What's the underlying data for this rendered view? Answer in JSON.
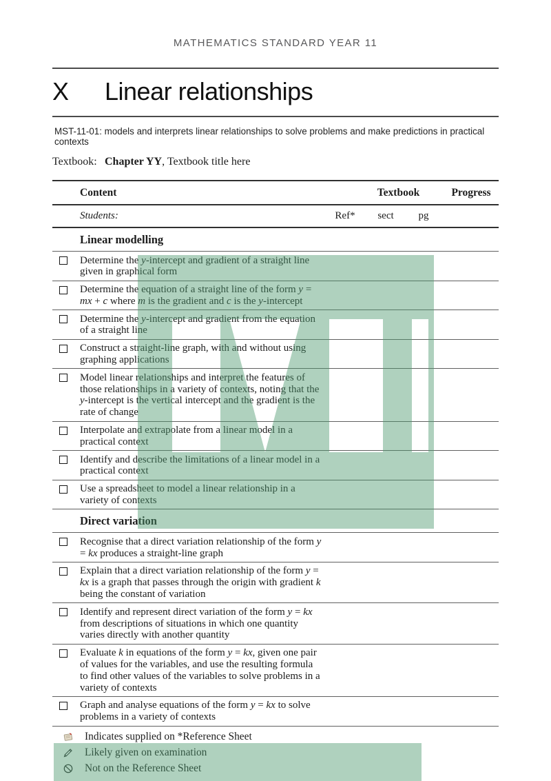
{
  "page_header": "MATHEMATICS STANDARD YEAR 11",
  "chapter": {
    "number": "X",
    "title": "Linear relationships"
  },
  "outcome": "MST-11-01: models and interprets linear relationships to solve problems and make predictions in practical contexts",
  "textbook_line": {
    "label": "Textbook:",
    "chapter": "Chapter YY",
    "rest": ", Textbook title here"
  },
  "table": {
    "headers": {
      "content": "Content",
      "textbook": "Textbook",
      "progress": "Progress"
    },
    "subheader": {
      "students": "Students:",
      "ref": "Ref*",
      "sect": "sect",
      "pg": "pg"
    },
    "sections": [
      {
        "title": "Linear modelling",
        "items": [
          "Determine the *y*-intercept and gradient of a straight line given in graphical form",
          "Determine the equation of a straight line of the form *y* = *mx* + *c* where *m* is the gradient and *c* is the *y*-intercept",
          "Determine the *y*-intercept and gradient from the equation of a straight line",
          "Construct a straight-line graph, with and without using graphing applications",
          "Model linear relationships and interpret the features of those relationships in a variety of contexts, noting that the *y*-intercept is the vertical intercept and the gradient is the rate of change",
          "Interpolate and extrapolate from a linear model in a practical context",
          "Identify and describe the limitations of a linear model in a practical context",
          "Use a spreadsheet to model a linear relationship in a variety of contexts"
        ]
      },
      {
        "title": "Direct variation",
        "items": [
          "Recognise that a direct variation relationship of the form *y* = *kx* produces a straight-line graph",
          "Explain that a direct variation relationship of the form *y* = *kx* is a graph that passes through the origin with gradient *k* being the constant of variation",
          "Identify and represent direct variation of the form *y* = *kx* from descriptions of situations in which one quantity varies directly with another quantity",
          "Evaluate *k* in equations of the form *y* = *kx*, given one pair of values for the variables, and use the resulting formula to find other values of the variables to solve problems in a variety of contexts",
          "Graph and analyse equations of the form *y* = *kx* to solve problems in a variety of contexts"
        ]
      }
    ]
  },
  "legend": [
    {
      "icon": "note-icon",
      "text": "Indicates supplied on *Reference Sheet"
    },
    {
      "icon": "pencil-icon",
      "text": "Likely given on examination"
    },
    {
      "icon": "no-symbol-icon",
      "text": "Not on the Reference Sheet"
    }
  ],
  "watermark": {
    "text": "ML",
    "color": "#4e9a6f"
  }
}
